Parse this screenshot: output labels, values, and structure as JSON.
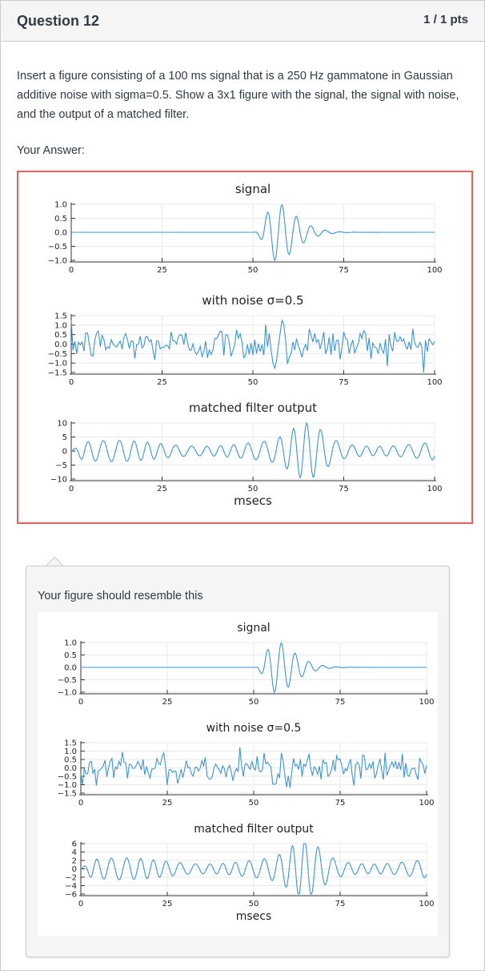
{
  "question": {
    "title": "Question 12",
    "points": "1 / 1 pts",
    "text": "Insert a figure consisting of a 100 ms signal that is a 250 Hz gammatone in Gaussian additive noise with sigma=0.5.  Show a 3x1 figure with the signal, the signal with noise, and the output of a matched filter."
  },
  "answer": {
    "label": "Your Answer:"
  },
  "comment": {
    "text": "Your figure should resemble this"
  },
  "colors": {
    "answer_border": "#e0605a",
    "line": "#3a95d4"
  },
  "chart_data": [
    {
      "figure": "student",
      "type": "line",
      "panels": [
        {
          "title": "signal",
          "xlabel": "",
          "xlim": [
            0,
            100
          ],
          "ylim": [
            -1.0,
            1.0
          ],
          "xticks": [
            "0",
            "25",
            "50",
            "75",
            "100"
          ],
          "yticks": [
            "1.0",
            "0.5",
            "0.0",
            "−0.5",
            "−1.0"
          ],
          "grid": true
        },
        {
          "title": "with noise σ=0.5",
          "xlabel": "",
          "xlim": [
            0,
            100
          ],
          "ylim": [
            -1.5,
            1.5
          ],
          "xticks": [
            "0",
            "25",
            "50",
            "75",
            "100"
          ],
          "yticks": [
            "1.5",
            "1.0",
            "0.5",
            "0.0",
            "−0.5",
            "−1.0",
            "−1.5"
          ],
          "grid": true
        },
        {
          "title": "matched filter output",
          "xlabel": "msecs",
          "xlim": [
            0,
            100
          ],
          "ylim": [
            -10,
            10
          ],
          "xticks": [
            "0",
            "25",
            "50",
            "75",
            "100"
          ],
          "yticks": [
            "10",
            "5",
            "0",
            "−5",
            "−10"
          ],
          "grid": true
        }
      ]
    },
    {
      "figure": "reference",
      "type": "line",
      "panels": [
        {
          "title": "signal",
          "xlabel": "",
          "xlim": [
            0,
            100
          ],
          "ylim": [
            -1.0,
            1.0
          ],
          "xticks": [
            "0",
            "25",
            "50",
            "75",
            "100"
          ],
          "yticks": [
            "1.0",
            "0.5",
            "0.0",
            "−0.5",
            "−1.0"
          ],
          "grid": true
        },
        {
          "title": "with noise σ=0.5",
          "xlabel": "",
          "xlim": [
            0,
            100
          ],
          "ylim": [
            -1.5,
            1.5
          ],
          "xticks": [
            "0",
            "25",
            "50",
            "75",
            "100"
          ],
          "yticks": [
            "1.5",
            "1.0",
            "0.5",
            "0.0",
            "−0.5",
            "−1.0",
            "−1.5"
          ],
          "grid": true
        },
        {
          "title": "matched filter output",
          "xlabel": "msecs",
          "xlim": [
            0,
            100
          ],
          "ylim": [
            -6,
            6
          ],
          "xticks": [
            "0",
            "25",
            "50",
            "75",
            "100"
          ],
          "yticks": [
            "6",
            "4",
            "2",
            "0",
            "−2",
            "−4",
            "−6"
          ],
          "grid": true
        }
      ]
    }
  ]
}
